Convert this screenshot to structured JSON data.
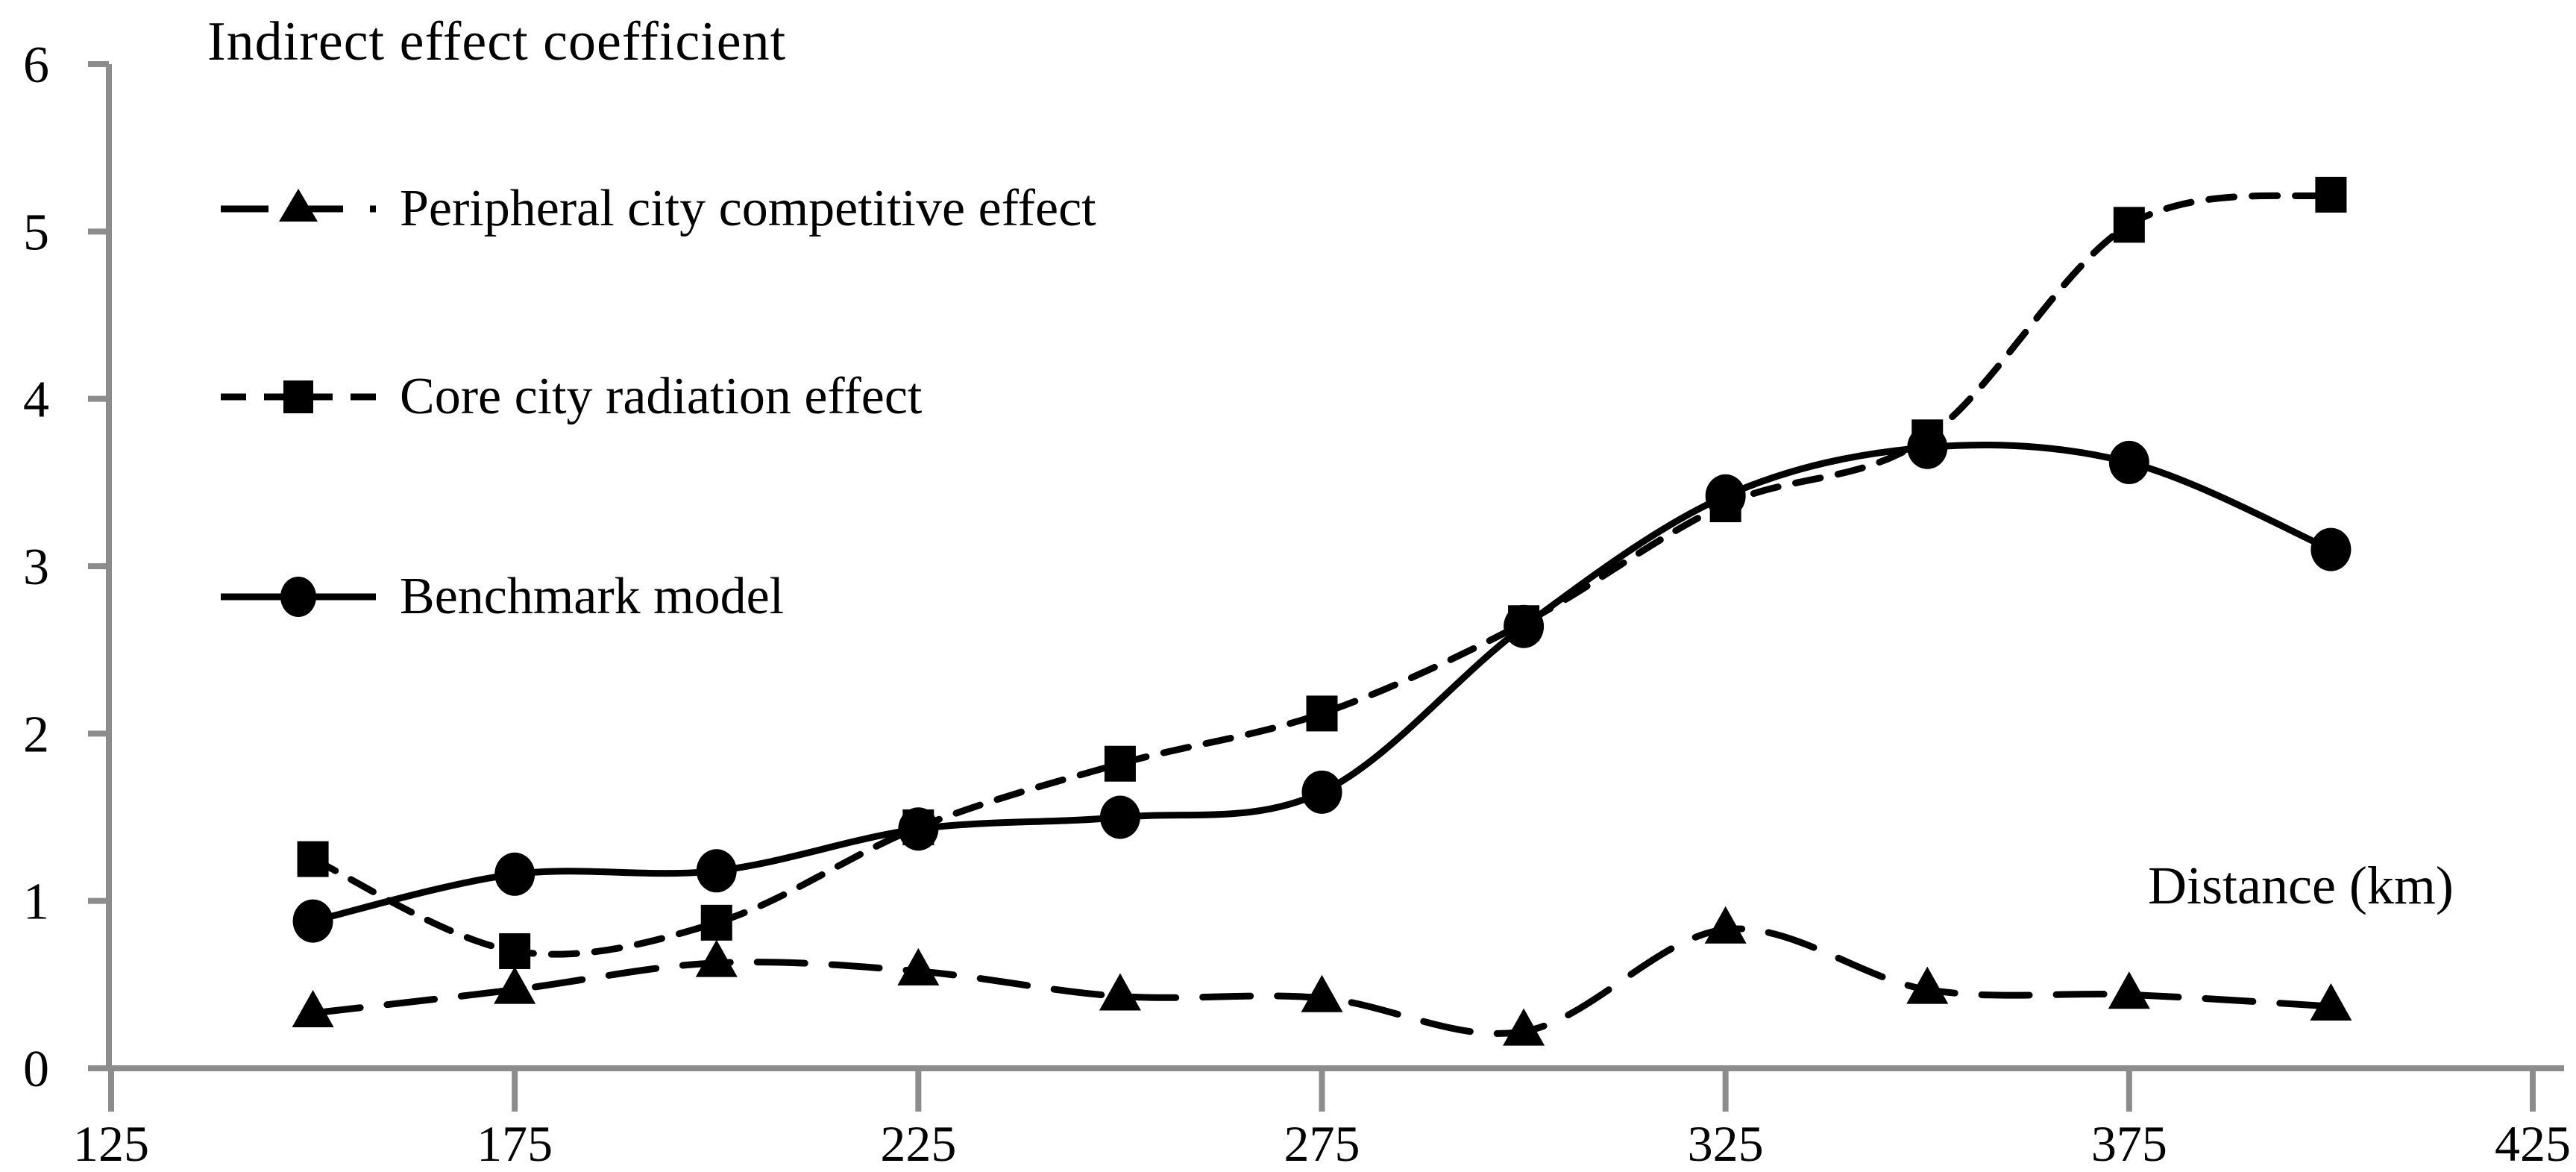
{
  "chart_data": {
    "type": "line",
    "title": "Indirect effect coefficient",
    "xlabel": "Distance (km)",
    "ylabel": "",
    "x": [
      150,
      175,
      200,
      225,
      250,
      275,
      300,
      325,
      350,
      375,
      400
    ],
    "xlim": [
      125,
      425
    ],
    "ylim": [
      0,
      6
    ],
    "xticks": [
      125,
      175,
      225,
      275,
      325,
      375,
      425
    ],
    "yticks": [
      0,
      1,
      2,
      3,
      4,
      5,
      6
    ],
    "grid": false,
    "legend_position": "upper-left",
    "axis_color": "#8c8c8c",
    "line_color": "#000000",
    "series": [
      {
        "name": "Peripheral city competitive effect",
        "marker": "triangle",
        "line": "long-dash",
        "values": [
          0.33,
          0.47,
          0.63,
          0.58,
          0.43,
          0.42,
          0.22,
          0.83,
          0.47,
          0.44,
          0.37
        ]
      },
      {
        "name": "Core city radiation effect",
        "marker": "square",
        "line": "short-dash",
        "values": [
          1.25,
          0.7,
          0.87,
          1.44,
          1.82,
          2.12,
          2.66,
          3.37,
          3.77,
          5.04,
          5.22
        ]
      },
      {
        "name": "Benchmark model",
        "marker": "circle",
        "line": "solid",
        "values": [
          0.88,
          1.16,
          1.18,
          1.43,
          1.5,
          1.65,
          2.64,
          3.42,
          3.71,
          3.62,
          3.1
        ]
      }
    ]
  }
}
